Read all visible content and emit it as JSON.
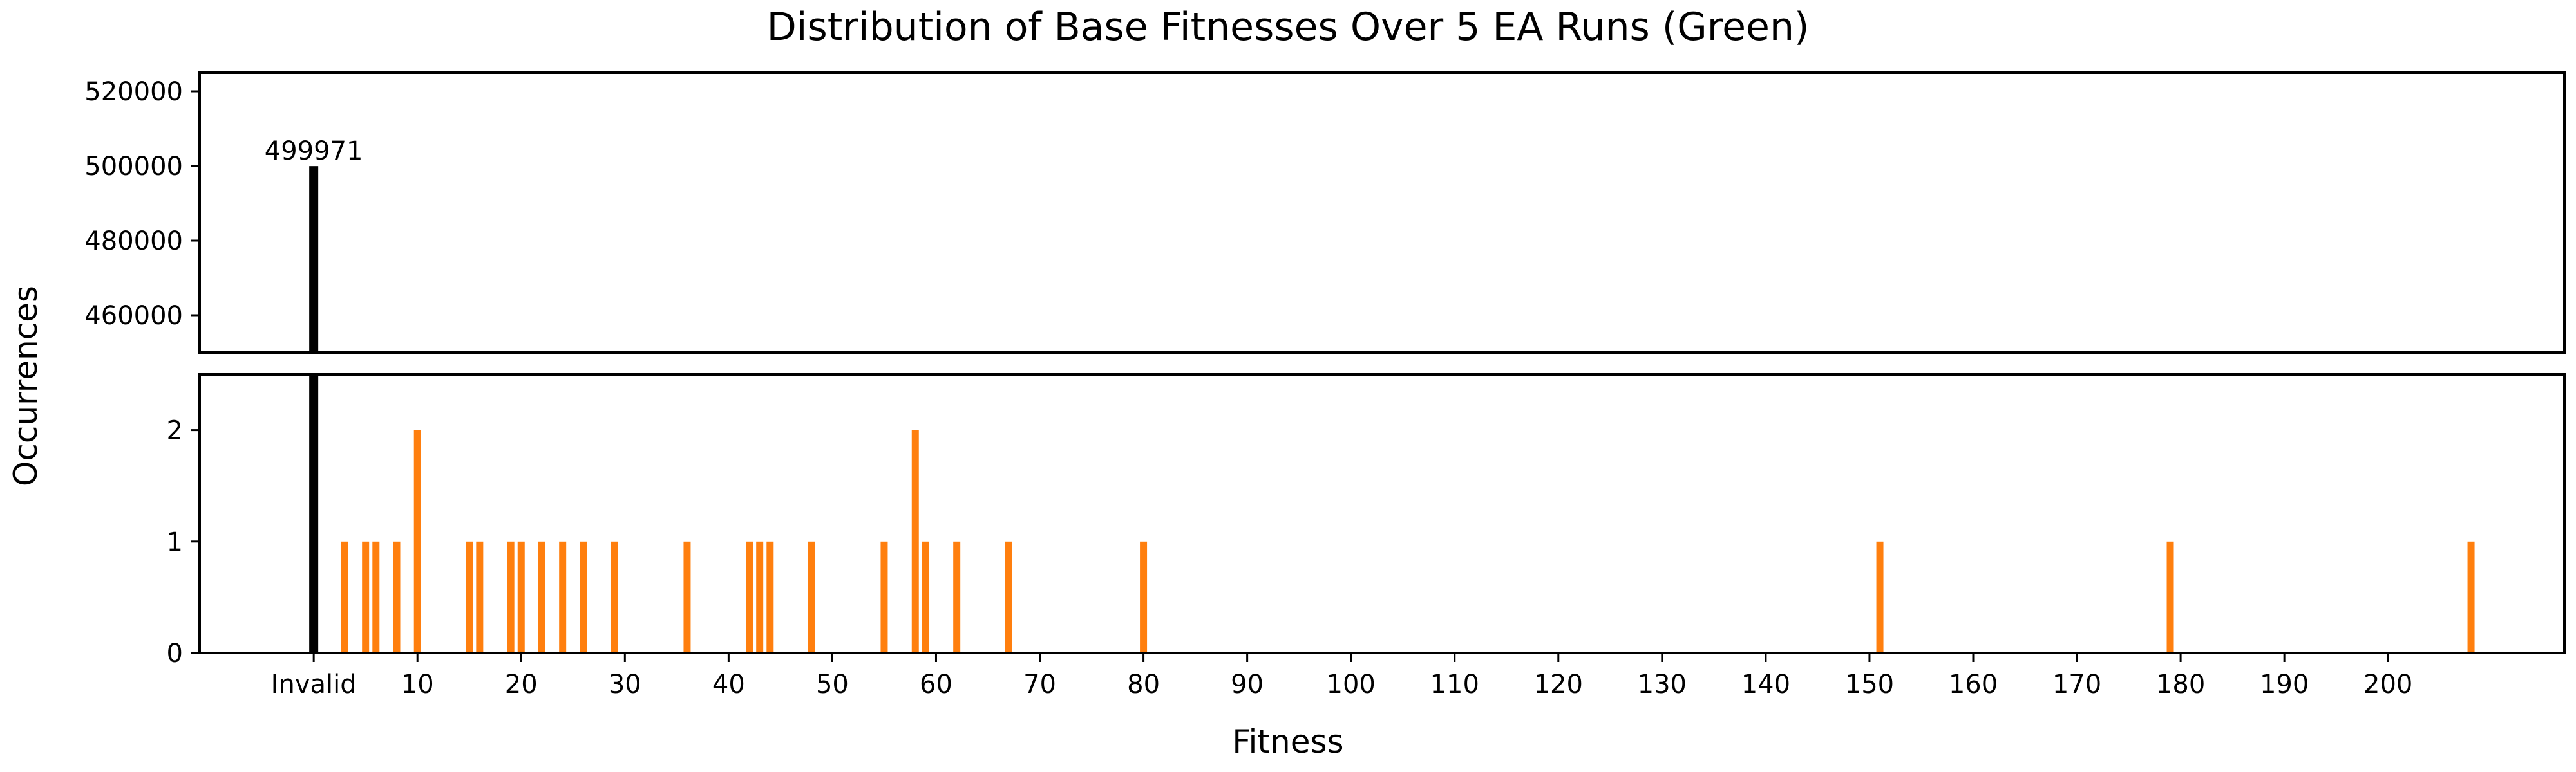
{
  "chart_data": {
    "type": "bar",
    "title": "Distribution of Base Fitnesses Over 5 EA Runs (Green)",
    "xlabel": "Fitness",
    "ylabel": "Occurrences",
    "xlim": [
      -11,
      217
    ],
    "x_ticks": [
      {
        "value": 0,
        "label": "Invalid"
      },
      {
        "value": 10,
        "label": "10"
      },
      {
        "value": 20,
        "label": "20"
      },
      {
        "value": 30,
        "label": "30"
      },
      {
        "value": 40,
        "label": "40"
      },
      {
        "value": 50,
        "label": "50"
      },
      {
        "value": 60,
        "label": "60"
      },
      {
        "value": 70,
        "label": "70"
      },
      {
        "value": 80,
        "label": "80"
      },
      {
        "value": 90,
        "label": "90"
      },
      {
        "value": 100,
        "label": "100"
      },
      {
        "value": 110,
        "label": "110"
      },
      {
        "value": 120,
        "label": "120"
      },
      {
        "value": 130,
        "label": "130"
      },
      {
        "value": 140,
        "label": "140"
      },
      {
        "value": 150,
        "label": "150"
      },
      {
        "value": 160,
        "label": "160"
      },
      {
        "value": 170,
        "label": "170"
      },
      {
        "value": 180,
        "label": "180"
      },
      {
        "value": 190,
        "label": "190"
      },
      {
        "value": 200,
        "label": "200"
      }
    ],
    "top_panel": {
      "ylim": [
        450000,
        525000
      ],
      "y_ticks": [
        "460000",
        "480000",
        "500000",
        "520000"
      ]
    },
    "bottom_panel": {
      "ylim": [
        0,
        2.5
      ],
      "y_ticks": [
        "0",
        "1",
        "2"
      ]
    },
    "series": [
      {
        "kind": "invalid",
        "color": "#000000",
        "points": [
          {
            "x": 0,
            "y": 499971,
            "label": "499971"
          }
        ]
      },
      {
        "kind": "valid",
        "color": "#ff7f0e",
        "points": [
          {
            "x": 3,
            "y": 1
          },
          {
            "x": 5,
            "y": 1
          },
          {
            "x": 6,
            "y": 1
          },
          {
            "x": 8,
            "y": 1
          },
          {
            "x": 10,
            "y": 2
          },
          {
            "x": 15,
            "y": 1
          },
          {
            "x": 16,
            "y": 1
          },
          {
            "x": 19,
            "y": 1
          },
          {
            "x": 20,
            "y": 1
          },
          {
            "x": 22,
            "y": 1
          },
          {
            "x": 24,
            "y": 1
          },
          {
            "x": 26,
            "y": 1
          },
          {
            "x": 29,
            "y": 1
          },
          {
            "x": 36,
            "y": 1
          },
          {
            "x": 42,
            "y": 1
          },
          {
            "x": 43,
            "y": 1
          },
          {
            "x": 44,
            "y": 1
          },
          {
            "x": 48,
            "y": 1
          },
          {
            "x": 55,
            "y": 1
          },
          {
            "x": 58,
            "y": 2
          },
          {
            "x": 59,
            "y": 1
          },
          {
            "x": 62,
            "y": 1
          },
          {
            "x": 67,
            "y": 1
          },
          {
            "x": 80,
            "y": 1
          },
          {
            "x": 151,
            "y": 1
          },
          {
            "x": 179,
            "y": 1
          },
          {
            "x": 208,
            "y": 1
          }
        ]
      }
    ]
  }
}
